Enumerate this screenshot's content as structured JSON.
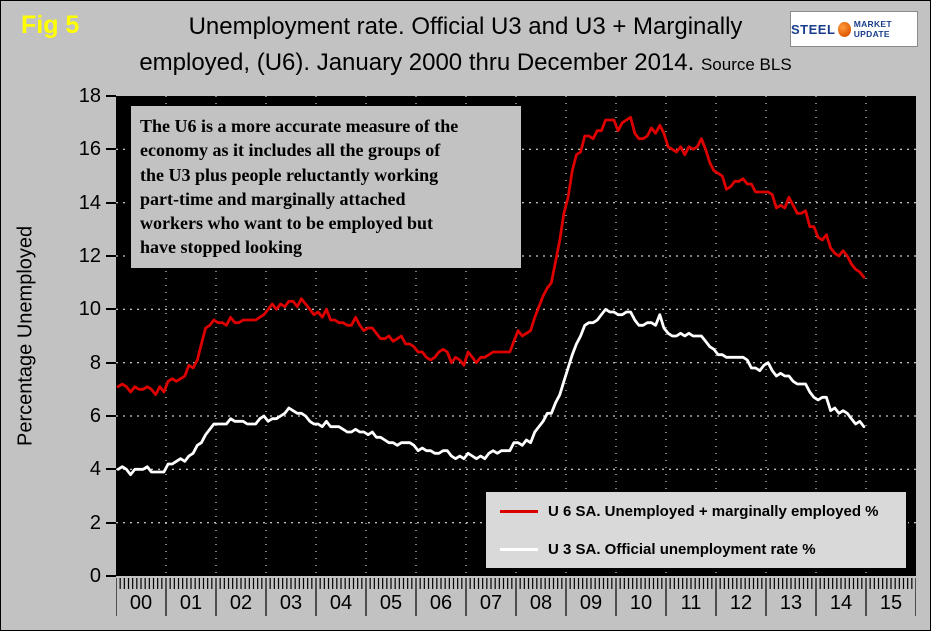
{
  "header": {
    "fig_label": "Fig 5",
    "title_line1": "Unemployment rate. Official U3 and U3 + Marginally",
    "title_line2": "employed, (U6). January 2000 thru December 2014.",
    "source": "Source BLS",
    "logo_steel": "STEEL",
    "logo_market_update": "MARKET UPDATE"
  },
  "annotation": "The U6 is a more accurate measure of the\neconomy as it includes all the groups of\nthe U3 plus people reluctantly working\npart-time and marginally attached\nworkers who want to be employed but\nhave stopped looking",
  "legend": [
    {
      "label": "U 6 SA. Unemployed + marginally employed %",
      "color": "#dd0000"
    },
    {
      "label": "U 3 SA. Official unemployment rate %",
      "color": "#ffffff"
    }
  ],
  "colors": {
    "page_background": "#c2c2c2",
    "plot_background": "#000000",
    "gridline": "#ffffff",
    "fig_label": "#ffff00",
    "u6_line": "#dd0000",
    "u3_line": "#ffffff"
  },
  "chart_data": {
    "type": "line",
    "title": "Unemployment rate. Official U3 and U3 + Marginally employed, (U6). January 2000 thru December 2014.",
    "xlabel": "",
    "ylabel": "Percentage Unemployed",
    "ylim": [
      0,
      18
    ],
    "y_tick_step": 2,
    "grid": true,
    "legend_position": "lower-right",
    "x_start": "2000-01",
    "x_end": "2014-12",
    "x_frequency": "monthly",
    "x_range_months": 192,
    "x_tick_labels": [
      "00",
      "01",
      "02",
      "03",
      "04",
      "05",
      "06",
      "07",
      "08",
      "09",
      "10",
      "11",
      "12",
      "13",
      "14",
      "15"
    ],
    "series": [
      {
        "name": "U 6 SA. Unemployed + marginally employed %",
        "color": "#dd0000",
        "values": [
          7.1,
          7.2,
          7.1,
          6.9,
          7.1,
          7.0,
          7.0,
          7.1,
          7.0,
          6.8,
          7.1,
          6.9,
          7.3,
          7.4,
          7.3,
          7.4,
          7.5,
          7.9,
          7.8,
          8.1,
          8.7,
          9.3,
          9.4,
          9.6,
          9.5,
          9.5,
          9.4,
          9.7,
          9.5,
          9.5,
          9.6,
          9.6,
          9.6,
          9.6,
          9.7,
          9.8,
          10.0,
          10.2,
          10.0,
          10.2,
          10.1,
          10.3,
          10.3,
          10.1,
          10.4,
          10.2,
          10.0,
          9.8,
          9.9,
          9.7,
          10.0,
          9.6,
          9.6,
          9.5,
          9.5,
          9.4,
          9.4,
          9.7,
          9.4,
          9.2,
          9.3,
          9.3,
          9.1,
          8.9,
          8.9,
          9.0,
          8.8,
          8.9,
          9.0,
          8.7,
          8.7,
          8.6,
          8.4,
          8.4,
          8.2,
          8.1,
          8.2,
          8.4,
          8.5,
          8.4,
          8.0,
          8.2,
          8.1,
          7.9,
          8.4,
          8.2,
          8.0,
          8.2,
          8.2,
          8.3,
          8.4,
          8.4,
          8.4,
          8.4,
          8.4,
          8.8,
          9.2,
          9.0,
          9.1,
          9.2,
          9.7,
          10.1,
          10.5,
          10.8,
          11.0,
          11.8,
          12.6,
          13.6,
          14.2,
          15.2,
          15.8,
          15.9,
          16.5,
          16.5,
          16.4,
          16.7,
          16.7,
          17.1,
          17.1,
          17.1,
          16.7,
          17.0,
          17.1,
          17.2,
          16.6,
          16.4,
          16.4,
          16.5,
          16.8,
          16.6,
          16.9,
          16.6,
          16.1,
          16.0,
          15.9,
          16.1,
          15.8,
          16.1,
          16.0,
          16.1,
          16.4,
          16.0,
          15.5,
          15.2,
          15.1,
          15.0,
          14.5,
          14.6,
          14.8,
          14.8,
          14.9,
          14.7,
          14.7,
          14.4,
          14.4,
          14.4,
          14.4,
          14.3,
          13.8,
          13.9,
          13.8,
          14.2,
          13.9,
          13.6,
          13.6,
          13.7,
          13.1,
          13.1,
          12.7,
          12.6,
          12.8,
          12.3,
          12.1,
          12.0,
          12.2,
          12.0,
          11.7,
          11.5,
          11.4,
          11.2
        ]
      },
      {
        "name": "U 3 SA. Official unemployment rate %",
        "color": "#ffffff",
        "values": [
          4.0,
          4.1,
          4.0,
          3.8,
          4.0,
          4.0,
          4.0,
          4.1,
          3.9,
          3.9,
          3.9,
          3.9,
          4.2,
          4.2,
          4.3,
          4.4,
          4.3,
          4.5,
          4.6,
          4.9,
          5.0,
          5.3,
          5.5,
          5.7,
          5.7,
          5.7,
          5.7,
          5.9,
          5.8,
          5.8,
          5.8,
          5.7,
          5.7,
          5.7,
          5.9,
          6.0,
          5.8,
          5.9,
          5.9,
          6.0,
          6.1,
          6.3,
          6.2,
          6.1,
          6.1,
          6.0,
          5.8,
          5.7,
          5.7,
          5.6,
          5.8,
          5.6,
          5.6,
          5.6,
          5.5,
          5.4,
          5.4,
          5.5,
          5.4,
          5.4,
          5.3,
          5.4,
          5.2,
          5.2,
          5.1,
          5.0,
          5.0,
          4.9,
          5.0,
          5.0,
          5.0,
          4.9,
          4.7,
          4.8,
          4.7,
          4.7,
          4.6,
          4.6,
          4.7,
          4.7,
          4.5,
          4.4,
          4.5,
          4.4,
          4.6,
          4.5,
          4.4,
          4.5,
          4.4,
          4.6,
          4.7,
          4.6,
          4.7,
          4.7,
          4.7,
          5.0,
          5.0,
          4.9,
          5.1,
          5.0,
          5.4,
          5.6,
          5.8,
          6.1,
          6.1,
          6.5,
          6.8,
          7.3,
          7.8,
          8.3,
          8.7,
          9.0,
          9.4,
          9.5,
          9.5,
          9.6,
          9.8,
          10.0,
          9.9,
          9.9,
          9.8,
          9.8,
          9.9,
          9.9,
          9.6,
          9.4,
          9.4,
          9.5,
          9.5,
          9.4,
          9.8,
          9.3,
          9.1,
          9.0,
          9.0,
          9.1,
          9.0,
          9.1,
          9.0,
          9.0,
          9.0,
          8.8,
          8.6,
          8.5,
          8.3,
          8.3,
          8.2,
          8.2,
          8.2,
          8.2,
          8.2,
          8.1,
          7.8,
          7.8,
          7.7,
          7.9,
          8.0,
          7.7,
          7.5,
          7.6,
          7.5,
          7.5,
          7.3,
          7.2,
          7.2,
          7.2,
          6.9,
          6.7,
          6.6,
          6.7,
          6.7,
          6.2,
          6.3,
          6.1,
          6.2,
          6.1,
          5.9,
          5.7,
          5.8,
          5.6
        ]
      }
    ]
  }
}
